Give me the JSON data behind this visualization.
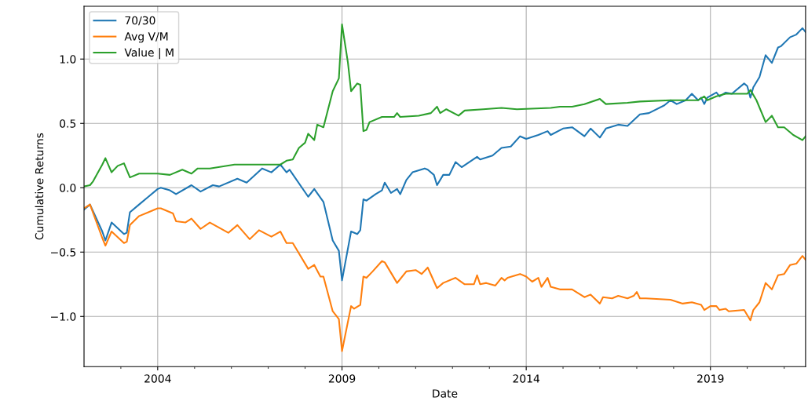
{
  "chart_data": {
    "type": "line",
    "xlabel": "Date",
    "ylabel": "Cumulative Returns",
    "xlim": [
      "2002-01",
      "2021-08"
    ],
    "ylim": [
      -1.39,
      1.41
    ],
    "xticks": [
      {
        "value": "2003-01",
        "label": null
      },
      {
        "value": "2004-01",
        "label": "2004"
      },
      {
        "value": "2005-01",
        "label": null
      },
      {
        "value": "2006-01",
        "label": null
      },
      {
        "value": "2007-01",
        "label": null
      },
      {
        "value": "2008-01",
        "label": null
      },
      {
        "value": "2009-01",
        "label": "2009"
      },
      {
        "value": "2010-01",
        "label": null
      },
      {
        "value": "2011-01",
        "label": null
      },
      {
        "value": "2012-01",
        "label": null
      },
      {
        "value": "2013-01",
        "label": null
      },
      {
        "value": "2014-01",
        "label": "2014"
      },
      {
        "value": "2015-01",
        "label": null
      },
      {
        "value": "2016-01",
        "label": null
      },
      {
        "value": "2017-01",
        "label": null
      },
      {
        "value": "2018-01",
        "label": null
      },
      {
        "value": "2019-01",
        "label": "2019"
      },
      {
        "value": "2020-01",
        "label": null
      },
      {
        "value": "2021-01",
        "label": null
      }
    ],
    "yticks": [
      {
        "value": -1.0,
        "label": "−1.0"
      },
      {
        "value": -0.5,
        "label": "−0.5"
      },
      {
        "value": 0.0,
        "label": "0.0"
      },
      {
        "value": 0.5,
        "label": "0.5"
      },
      {
        "value": 1.0,
        "label": "1.0"
      }
    ],
    "grid": true,
    "legend": "top left",
    "series": [
      {
        "name": "70/30",
        "color": "#1f77b4",
        "x": [
          "2002-01",
          "2002-03",
          "2002-07",
          "2002-08",
          "2002-10",
          "2003-02",
          "2003-03",
          "2003-04",
          "2003-07",
          "2003-10",
          "2004-01",
          "2004-02",
          "2004-05",
          "2004-07",
          "2004-12",
          "2005-03",
          "2005-07",
          "2005-09",
          "2006-03",
          "2006-06",
          "2006-11",
          "2007-02",
          "2007-05",
          "2007-07",
          "2007-08",
          "2008-02",
          "2008-04",
          "2008-07",
          "2008-10",
          "2008-12",
          "2009-01",
          "2009-04",
          "2009-06",
          "2009-07",
          "2009-08",
          "2009-09",
          "2009-12",
          "2010-02",
          "2010-03",
          "2010-05",
          "2010-07",
          "2010-08",
          "2010-10",
          "2010-12",
          "2011-04",
          "2011-05",
          "2011-07",
          "2011-08",
          "2011-10",
          "2011-12",
          "2012-02",
          "2012-04",
          "2012-09",
          "2012-10",
          "2013-02",
          "2013-05",
          "2013-08",
          "2013-11",
          "2014-01",
          "2014-05",
          "2014-08",
          "2014-09",
          "2015-01",
          "2015-04",
          "2015-08",
          "2015-10",
          "2016-01",
          "2016-03",
          "2016-07",
          "2016-10",
          "2017-02",
          "2017-05",
          "2017-10",
          "2017-12",
          "2018-02",
          "2018-05",
          "2018-07",
          "2018-09",
          "2018-10",
          "2018-11",
          "2018-12",
          "2019-03",
          "2019-04",
          "2019-06",
          "2019-08",
          "2019-12",
          "2020-01",
          "2020-02",
          "2020-03",
          "2020-05",
          "2020-07",
          "2020-09",
          "2020-11",
          "2020-12",
          "2021-03",
          "2021-05",
          "2021-07",
          "2021-08"
        ],
        "values": [
          -0.17,
          -0.13,
          -0.34,
          -0.41,
          -0.27,
          -0.36,
          -0.35,
          -0.19,
          -0.13,
          -0.07,
          -0.01,
          0.0,
          -0.02,
          -0.05,
          0.02,
          -0.03,
          0.02,
          0.01,
          0.07,
          0.04,
          0.15,
          0.12,
          0.18,
          0.12,
          0.14,
          -0.07,
          -0.01,
          -0.11,
          -0.41,
          -0.49,
          -0.72,
          -0.34,
          -0.36,
          -0.33,
          -0.09,
          -0.1,
          -0.05,
          -0.02,
          0.04,
          -0.04,
          -0.01,
          -0.05,
          0.06,
          0.12,
          0.15,
          0.14,
          0.1,
          0.02,
          0.1,
          0.1,
          0.2,
          0.16,
          0.24,
          0.22,
          0.25,
          0.31,
          0.32,
          0.4,
          0.38,
          0.41,
          0.44,
          0.41,
          0.46,
          0.47,
          0.4,
          0.46,
          0.39,
          0.46,
          0.49,
          0.48,
          0.57,
          0.58,
          0.64,
          0.68,
          0.65,
          0.68,
          0.73,
          0.68,
          0.7,
          0.65,
          0.7,
          0.74,
          0.71,
          0.74,
          0.73,
          0.81,
          0.79,
          0.7,
          0.78,
          0.86,
          1.03,
          0.97,
          1.09,
          1.1,
          1.17,
          1.19,
          1.24,
          1.21
        ]
      },
      {
        "name": "Avg V/M",
        "color": "#ff7f0e",
        "x": [
          "2002-01",
          "2002-03",
          "2002-07",
          "2002-08",
          "2002-10",
          "2003-02",
          "2003-03",
          "2003-04",
          "2003-07",
          "2003-10",
          "2004-01",
          "2004-02",
          "2004-06",
          "2004-07",
          "2004-10",
          "2004-12",
          "2005-03",
          "2005-06",
          "2005-12",
          "2006-03",
          "2006-07",
          "2006-10",
          "2007-02",
          "2007-05",
          "2007-07",
          "2007-09",
          "2008-02",
          "2008-04",
          "2008-06",
          "2008-07",
          "2008-10",
          "2008-12",
          "2009-01",
          "2009-04",
          "2009-05",
          "2009-07",
          "2009-08",
          "2009-09",
          "2009-11",
          "2010-02",
          "2010-03",
          "2010-07",
          "2010-10",
          "2011-01",
          "2011-03",
          "2011-05",
          "2011-08",
          "2011-10",
          "2012-02",
          "2012-05",
          "2012-08",
          "2012-09",
          "2012-10",
          "2012-12",
          "2013-03",
          "2013-05",
          "2013-06",
          "2013-07",
          "2013-11",
          "2014-01",
          "2014-03",
          "2014-05",
          "2014-06",
          "2014-08",
          "2014-09",
          "2014-12",
          "2015-04",
          "2015-08",
          "2015-10",
          "2016-01",
          "2016-02",
          "2016-05",
          "2016-07",
          "2016-10",
          "2016-12",
          "2017-01",
          "2017-02",
          "2017-04",
          "2017-12",
          "2018-04",
          "2018-07",
          "2018-10",
          "2018-11",
          "2019-01",
          "2019-03",
          "2019-04",
          "2019-06",
          "2019-07",
          "2019-12",
          "2020-02",
          "2020-03",
          "2020-05",
          "2020-07",
          "2020-09",
          "2020-11",
          "2021-01",
          "2021-03",
          "2021-05",
          "2021-07",
          "2021-08"
        ],
        "values": [
          -0.16,
          -0.13,
          -0.39,
          -0.45,
          -0.34,
          -0.43,
          -0.42,
          -0.29,
          -0.22,
          -0.19,
          -0.16,
          -0.16,
          -0.2,
          -0.26,
          -0.27,
          -0.24,
          -0.32,
          -0.27,
          -0.35,
          -0.29,
          -0.4,
          -0.33,
          -0.38,
          -0.34,
          -0.43,
          -0.43,
          -0.63,
          -0.6,
          -0.69,
          -0.69,
          -0.96,
          -1.02,
          -1.27,
          -0.92,
          -0.94,
          -0.91,
          -0.69,
          -0.7,
          -0.65,
          -0.57,
          -0.58,
          -0.74,
          -0.65,
          -0.64,
          -0.67,
          -0.62,
          -0.78,
          -0.74,
          -0.7,
          -0.75,
          -0.75,
          -0.68,
          -0.75,
          -0.74,
          -0.76,
          -0.7,
          -0.72,
          -0.7,
          -0.67,
          -0.69,
          -0.73,
          -0.7,
          -0.77,
          -0.7,
          -0.77,
          -0.79,
          -0.79,
          -0.85,
          -0.83,
          -0.9,
          -0.85,
          -0.86,
          -0.84,
          -0.86,
          -0.84,
          -0.81,
          -0.86,
          -0.86,
          -0.87,
          -0.9,
          -0.89,
          -0.91,
          -0.95,
          -0.92,
          -0.92,
          -0.95,
          -0.94,
          -0.96,
          -0.95,
          -1.03,
          -0.95,
          -0.89,
          -0.74,
          -0.79,
          -0.68,
          -0.67,
          -0.6,
          -0.59,
          -0.53,
          -0.56
        ]
      },
      {
        "name": "Value | M",
        "color": "#2ca02c",
        "x": [
          "2002-01",
          "2002-03",
          "2002-04",
          "2002-07",
          "2002-08",
          "2002-10",
          "2002-12",
          "2003-02",
          "2003-04",
          "2003-07",
          "2004-01",
          "2004-05",
          "2004-09",
          "2004-12",
          "2005-02",
          "2005-06",
          "2006-02",
          "2006-11",
          "2007-05",
          "2007-07",
          "2007-09",
          "2007-11",
          "2008-01",
          "2008-02",
          "2008-04",
          "2008-05",
          "2008-07",
          "2008-10",
          "2008-12",
          "2009-01",
          "2009-03",
          "2009-04",
          "2009-06",
          "2009-07",
          "2009-08",
          "2009-09",
          "2009-10",
          "2010-02",
          "2010-06",
          "2010-07",
          "2010-08",
          "2011-02",
          "2011-06",
          "2011-08",
          "2011-09",
          "2011-11",
          "2012-03",
          "2012-05",
          "2012-11",
          "2013-05",
          "2013-10",
          "2014-09",
          "2014-12",
          "2015-04",
          "2015-08",
          "2016-01",
          "2016-03",
          "2016-10",
          "2017-02",
          "2017-12",
          "2018-09",
          "2018-11",
          "2018-12",
          "2019-03",
          "2019-06",
          "2019-12",
          "2020-01",
          "2020-02",
          "2020-04",
          "2020-07",
          "2020-09",
          "2020-11",
          "2021-01",
          "2021-04",
          "2021-07",
          "2021-08"
        ],
        "values": [
          0.01,
          0.02,
          0.05,
          0.18,
          0.23,
          0.12,
          0.17,
          0.19,
          0.08,
          0.11,
          0.11,
          0.1,
          0.14,
          0.11,
          0.15,
          0.15,
          0.18,
          0.18,
          0.18,
          0.21,
          0.22,
          0.31,
          0.35,
          0.42,
          0.37,
          0.49,
          0.47,
          0.75,
          0.85,
          1.27,
          0.97,
          0.75,
          0.81,
          0.8,
          0.44,
          0.45,
          0.51,
          0.55,
          0.55,
          0.58,
          0.55,
          0.56,
          0.58,
          0.63,
          0.58,
          0.61,
          0.56,
          0.6,
          0.61,
          0.62,
          0.61,
          0.62,
          0.63,
          0.63,
          0.65,
          0.69,
          0.65,
          0.66,
          0.67,
          0.68,
          0.68,
          0.71,
          0.68,
          0.71,
          0.73,
          0.73,
          0.73,
          0.76,
          0.68,
          0.51,
          0.56,
          0.47,
          0.47,
          0.41,
          0.37,
          0.4
        ]
      }
    ]
  }
}
